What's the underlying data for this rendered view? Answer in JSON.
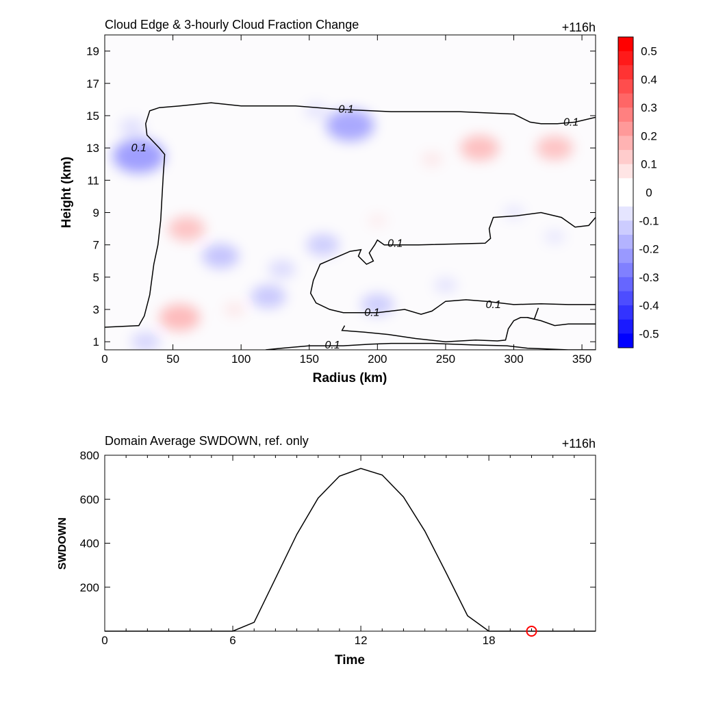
{
  "top_panel": {
    "title": "Cloud Edge & 3-hourly Cloud Fraction Change",
    "time_tag": "+116h",
    "xlabel": "Radius (km)",
    "ylabel": "Height (km)"
  },
  "bottom_panel": {
    "title": "Domain Average SWDOWN, ref. only",
    "time_tag": "+116h",
    "xlabel": "Time",
    "ylabel": "SWDOWN"
  },
  "chart_data": [
    {
      "type": "heatmap",
      "title": "Cloud Edge & 3-hourly Cloud Fraction Change",
      "xlabel": "Radius (km)",
      "ylabel": "Height (km)",
      "xlim": [
        0,
        360
      ],
      "ylim": [
        0.5,
        20
      ],
      "xticks": [
        0,
        50,
        100,
        150,
        200,
        250,
        300,
        350
      ],
      "yticks": [
        1,
        3,
        5,
        7,
        9,
        11,
        13,
        15,
        17,
        19
      ],
      "colorbar": {
        "min": -0.55,
        "max": 0.55,
        "step": 0.05,
        "labels": [
          "0.5",
          "0.4",
          "0.3",
          "0.2",
          "0.1",
          "0",
          "-0.1",
          "-0.2",
          "-0.3",
          "-0.4",
          "-0.5"
        ],
        "colors": {
          "negative": "#0000ff",
          "neutral": "#ffffff",
          "positive": "#ff0000"
        }
      },
      "contour_level": 0.1,
      "contour_labels": [
        "0.1",
        "0.1",
        "0.1",
        "0.1",
        "0.1",
        "0.1",
        "0.1"
      ],
      "anomalies": [
        {
          "x": 25,
          "y": 12.5,
          "value": -0.2
        },
        {
          "x": 20,
          "y": 14.3,
          "value": -0.06
        },
        {
          "x": 180,
          "y": 14.4,
          "value": -0.18
        },
        {
          "x": 155,
          "y": 15.3,
          "value": -0.05
        },
        {
          "x": 275,
          "y": 13.0,
          "value": 0.13
        },
        {
          "x": 330,
          "y": 13.0,
          "value": 0.12
        },
        {
          "x": 240,
          "y": 12.3,
          "value": 0.04
        },
        {
          "x": 60,
          "y": 8.0,
          "value": 0.12
        },
        {
          "x": 55,
          "y": 2.5,
          "value": 0.14
        },
        {
          "x": 85,
          "y": 6.3,
          "value": -0.12
        },
        {
          "x": 130,
          "y": 5.5,
          "value": -0.07
        },
        {
          "x": 120,
          "y": 3.8,
          "value": -0.11
        },
        {
          "x": 160,
          "y": 7.0,
          "value": -0.1
        },
        {
          "x": 200,
          "y": 3.3,
          "value": -0.1
        },
        {
          "x": 250,
          "y": 4.5,
          "value": -0.05
        },
        {
          "x": 95,
          "y": 3.0,
          "value": 0.04
        },
        {
          "x": 30,
          "y": 1.0,
          "value": -0.08
        },
        {
          "x": 330,
          "y": 7.5,
          "value": -0.04
        },
        {
          "x": 200,
          "y": 8.5,
          "value": 0.03
        },
        {
          "x": 300,
          "y": 9.0,
          "value": -0.04
        }
      ],
      "contours": [
        {
          "label_at": [
            [
              177,
              15.4
            ],
            [
              25,
              13.0
            ],
            [
              342,
              14.6
            ]
          ],
          "points": [
            [
              0,
              1.9
            ],
            [
              25,
              2.0
            ],
            [
              29,
              2.6
            ],
            [
              33,
              3.9
            ],
            [
              36,
              5.8
            ],
            [
              39,
              7.0
            ],
            [
              41,
              8.5
            ],
            [
              42,
              10.0
            ],
            [
              43,
              11.4
            ],
            [
              44,
              12.6
            ],
            [
              40,
              13.0
            ],
            [
              31,
              13.8
            ],
            [
              30,
              14.5
            ],
            [
              33,
              15.3
            ],
            [
              40,
              15.5
            ],
            [
              55,
              15.6
            ],
            [
              78,
              15.8
            ],
            [
              100,
              15.6
            ],
            [
              140,
              15.6
            ],
            [
              170,
              15.4
            ],
            [
              210,
              15.25
            ],
            [
              260,
              15.25
            ],
            [
              300,
              15.1
            ],
            [
              312,
              14.6
            ],
            [
              320,
              14.5
            ],
            [
              332,
              14.5
            ],
            [
              345,
              14.6
            ],
            [
              360,
              14.9
            ]
          ]
        },
        {
          "label_at": [
            [
              213,
              7.1
            ],
            [
              285,
              3.3
            ],
            [
              196,
              2.8
            ],
            [
              167,
              0.8
            ]
          ],
          "points": [
            [
              360,
              8.7
            ],
            [
              355,
              8.2
            ],
            [
              345,
              8.1
            ],
            [
              335,
              8.7
            ],
            [
              320,
              9.0
            ],
            [
              302,
              8.8
            ],
            [
              285,
              8.7
            ],
            [
              282,
              8.0
            ],
            [
              283,
              7.4
            ],
            [
              279,
              7.1
            ],
            [
              230,
              7.0
            ],
            [
              205,
              7.0
            ],
            [
              200,
              7.3
            ],
            [
              198,
              7.0
            ],
            [
              194,
              6.5
            ],
            [
              197,
              6.0
            ],
            [
              192,
              5.8
            ],
            [
              186,
              6.3
            ],
            [
              188,
              6.7
            ],
            [
              180,
              6.6
            ],
            [
              158,
              5.8
            ],
            [
              153,
              4.8
            ],
            [
              151,
              4.0
            ],
            [
              155,
              3.4
            ],
            [
              165,
              3.0
            ],
            [
              175,
              2.8
            ],
            [
              185,
              2.8
            ],
            [
              200,
              2.8
            ],
            [
              220,
              3.0
            ],
            [
              232,
              2.7
            ],
            [
              240,
              2.9
            ],
            [
              245,
              3.2
            ],
            [
              250,
              3.5
            ],
            [
              265,
              3.6
            ],
            [
              280,
              3.5
            ],
            [
              300,
              3.3
            ],
            [
              320,
              3.35
            ],
            [
              340,
              3.3
            ],
            [
              360,
              3.3
            ]
          ]
        },
        {
          "points": [
            [
              176,
              2.0
            ],
            [
              174,
              1.7
            ],
            [
              190,
              1.6
            ],
            [
              208,
              1.45
            ],
            [
              228,
              1.2
            ],
            [
              250,
              1.0
            ],
            [
              272,
              1.1
            ],
            [
              288,
              1.05
            ],
            [
              294,
              1.1
            ],
            [
              296,
              1.8
            ],
            [
              300,
              2.3
            ],
            [
              305,
              2.5
            ],
            [
              310,
              2.5
            ],
            [
              320,
              2.3
            ],
            [
              330,
              2.0
            ],
            [
              340,
              2.1
            ],
            [
              360,
              2.1
            ]
          ]
        },
        {
          "points": [
            [
              310,
              2.5
            ],
            [
              315,
              2.4
            ],
            [
              318,
              3.1
            ]
          ]
        },
        {
          "points": [
            [
              118,
              0.5
            ],
            [
              130,
              0.6
            ],
            [
              150,
              0.75
            ],
            [
              175,
              0.75
            ],
            [
              195,
              0.85
            ],
            [
              210,
              0.9
            ],
            [
              240,
              0.9
            ],
            [
              270,
              0.8
            ],
            [
              295,
              0.75
            ],
            [
              310,
              0.6
            ],
            [
              340,
              0.5
            ],
            [
              360,
              0.5
            ]
          ]
        }
      ]
    },
    {
      "type": "line",
      "title": "Domain Average SWDOWN, ref. only",
      "xlabel": "Time",
      "ylabel": "SWDOWN",
      "xlim": [
        0,
        23
      ],
      "ylim": [
        0,
        800
      ],
      "xticks": [
        0,
        6,
        12,
        18
      ],
      "yticks": [
        200,
        400,
        600,
        800
      ],
      "series": [
        {
          "x": [
            0,
            1,
            2,
            3,
            4,
            5,
            6,
            7,
            8,
            9,
            10,
            11,
            12,
            13,
            14,
            15,
            16,
            17,
            18,
            19,
            20,
            21,
            22,
            23
          ],
          "y": [
            0,
            0,
            0,
            0,
            0,
            0,
            0,
            40,
            240,
            440,
            605,
            705,
            740,
            710,
            610,
            455,
            265,
            70,
            0,
            0,
            0,
            0,
            0,
            0
          ]
        }
      ],
      "marker": {
        "x": 20,
        "y": 0,
        "color": "#ff0000"
      }
    }
  ]
}
